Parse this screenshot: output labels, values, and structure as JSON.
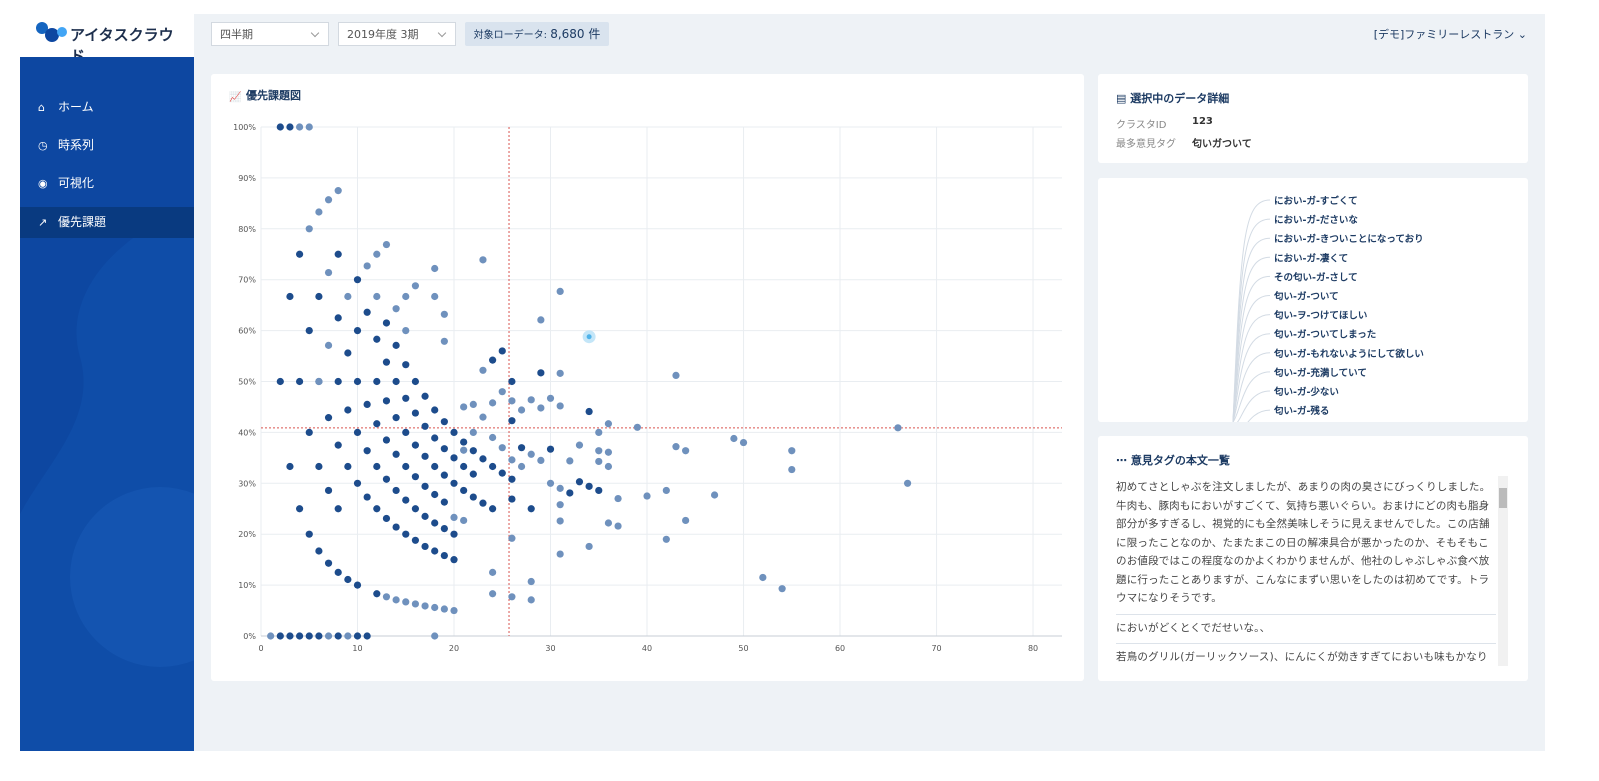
{
  "header": {
    "logo": "アイタスクラウド",
    "period": "四半期",
    "term": "2019年度 3期",
    "count_label": "対象ローデータ:",
    "count_value": "8,680 件",
    "account": "[デモ]ファミリーレストラン"
  },
  "sidebar": {
    "items": [
      "ホーム",
      "時系列",
      "可視化",
      "優先課題"
    ]
  },
  "chart_data": {
    "type": "scatter",
    "title": "優先課題図",
    "xlim": [
      0,
      83
    ],
    "xticks": [
      0,
      10,
      20,
      30,
      40,
      50,
      60,
      70,
      80
    ],
    "ylim": [
      0,
      100
    ],
    "yticks": [
      {
        "value": 0,
        "label": "0%"
      },
      {
        "value": 10,
        "label": "10%"
      },
      {
        "value": 20,
        "label": "20%"
      },
      {
        "value": 30,
        "label": "30%"
      },
      {
        "value": 40,
        "label": "40%"
      },
      {
        "value": 50,
        "label": "50%"
      },
      {
        "value": 60,
        "label": "60%"
      },
      {
        "value": 70,
        "label": "70%"
      },
      {
        "value": 80,
        "label": "80%"
      },
      {
        "value": 90,
        "label": "90%"
      },
      {
        "value": 100,
        "label": "100%"
      }
    ],
    "grid": true,
    "ref_x": 25.7,
    "ref_y": 40.9,
    "ref_color": "#d9534f",
    "series": [
      {
        "color": "#1d4c8c",
        "x": [
          2,
          3,
          2,
          4,
          3,
          6,
          5,
          3,
          4,
          5,
          6,
          7,
          8,
          9,
          10,
          12,
          4,
          8,
          6,
          8,
          10,
          5,
          8,
          10,
          10,
          12,
          11,
          9,
          9,
          10,
          11,
          12,
          13,
          14,
          15,
          16,
          17,
          18,
          19,
          20,
          8,
          7,
          10,
          9,
          11,
          12,
          13,
          14,
          15,
          16,
          17,
          18,
          19,
          20,
          11,
          12,
          13,
          14,
          15,
          16,
          17,
          18,
          19,
          20,
          21,
          22,
          23,
          24,
          12,
          13,
          14,
          15,
          16,
          17,
          18,
          19,
          13,
          14,
          15,
          16,
          17,
          18,
          19,
          20,
          21,
          22,
          14,
          16,
          17,
          18,
          19,
          20,
          21,
          22,
          23,
          24,
          25,
          26,
          13,
          15,
          24,
          25,
          26,
          26,
          26,
          28,
          29,
          27,
          30,
          32,
          33,
          34,
          35,
          34,
          8,
          7,
          6,
          2,
          3,
          4,
          5,
          6,
          8,
          10,
          11
        ],
        "values": [
          100,
          100,
          50,
          50,
          66.7,
          66.7,
          60,
          33.3,
          25,
          20,
          16.7,
          14.3,
          12.5,
          11.1,
          10,
          8.3,
          75,
          75,
          50,
          50,
          50,
          40,
          62.5,
          60,
          70,
          58.3,
          63.6,
          55.6,
          44.4,
          40,
          36.4,
          33.3,
          30.8,
          28.6,
          26.7,
          25,
          23.5,
          22.2,
          21.1,
          20,
          37.5,
          42.9,
          30,
          33.3,
          27.3,
          25,
          23.1,
          21.4,
          20,
          18.8,
          17.6,
          16.7,
          15.8,
          15,
          45.5,
          50,
          46.2,
          42.9,
          40,
          37.5,
          35.3,
          33.3,
          31.6,
          30,
          28.6,
          27.3,
          26.1,
          25,
          41.7,
          38.5,
          35.7,
          33.3,
          31.3,
          29.4,
          27.8,
          26.3,
          53.8,
          50,
          46.7,
          43.8,
          41.2,
          38.9,
          36.8,
          35,
          33.3,
          31.8,
          57.1,
          50,
          47.1,
          44.4,
          42.1,
          40,
          38.1,
          36.4,
          34.8,
          33.3,
          32,
          30.8,
          61.5,
          53.3,
          54.2,
          56,
          50,
          42.3,
          26.9,
          25,
          51.7,
          37,
          36.7,
          28.1,
          30.3,
          29.4,
          28.6,
          44.1,
          25,
          28.6,
          33.3,
          0,
          0,
          0,
          0,
          0,
          0,
          0,
          0
        ]
      },
      {
        "color": "#6f91bd",
        "x": [
          4,
          5,
          5,
          6,
          7,
          8,
          7,
          9,
          11,
          12,
          13,
          12,
          14,
          15,
          16,
          18,
          18,
          19,
          19,
          23,
          31,
          29,
          6,
          7,
          15,
          23,
          22,
          24,
          25,
          26,
          27,
          28,
          29,
          30,
          31,
          31,
          43,
          39,
          36,
          35,
          35,
          35,
          36,
          36,
          33,
          32,
          29,
          28,
          27,
          26,
          43,
          44,
          49,
          50,
          55,
          55,
          66,
          67,
          37,
          36,
          37,
          40,
          42,
          44,
          47,
          42,
          31,
          31,
          31,
          30,
          34,
          31,
          26,
          24,
          24,
          26,
          28,
          28,
          52,
          54,
          20,
          19,
          18,
          17,
          16,
          15,
          14,
          13,
          1,
          7,
          9,
          18,
          21,
          20,
          21,
          22,
          21,
          23,
          24,
          25
        ],
        "values": [
          100,
          100,
          80,
          83.3,
          85.7,
          87.5,
          71.4,
          66.7,
          72.7,
          75,
          76.9,
          66.7,
          64.3,
          66.7,
          68.8,
          72.2,
          66.7,
          63.2,
          57.9,
          73.9,
          67.7,
          62.1,
          50,
          57.1,
          60,
          52.2,
          45.5,
          45.8,
          48,
          46.2,
          44.4,
          46.4,
          44.8,
          46.7,
          45.2,
          51.6,
          51.2,
          41,
          41.7,
          40,
          36.4,
          34.3,
          36.1,
          33.3,
          37.5,
          34.4,
          34.5,
          35.7,
          33.3,
          34.6,
          37.2,
          36.4,
          38.8,
          38,
          36.4,
          32.7,
          40.9,
          30,
          27,
          22.2,
          21.6,
          27.5,
          28.6,
          22.7,
          27.7,
          19,
          22.6,
          25.8,
          29,
          30,
          17.6,
          16.1,
          19.2,
          12.5,
          8.3,
          7.7,
          7.1,
          10.7,
          11.5,
          9.3,
          5,
          5.3,
          5.6,
          5.9,
          6.3,
          6.7,
          7.1,
          7.7,
          0,
          0,
          0,
          0,
          22.7,
          23.3,
          36.5,
          40,
          45,
          43,
          39,
          37
        ]
      },
      {
        "color": "#4fb3ea",
        "halo": "#c4e6f8",
        "x": [
          34
        ],
        "values": [
          58.8
        ]
      }
    ]
  },
  "detail": {
    "title": "選択中のデータ詳細",
    "rows": [
      [
        "クラスタID",
        "123"
      ],
      [
        "最多意見タグ",
        "匂いガついて"
      ]
    ]
  },
  "tags": [
    "におい-ガ-すごくて",
    "におい-ガ-ださいな",
    "におい-ガ-きついことになっており",
    "におい-ガ-凄くて",
    "その匂い-ガ-さして",
    "匂い-ガ-ついて",
    "匂い-ヲ-つけてほしい",
    "匂い-ガ-ついてしまった",
    "匂い-ガ-もれないようにして欲しい",
    "匂い-ガ-充満していて",
    "匂い-ガ-少ない",
    "匂い-ガ-残る"
  ],
  "comments": {
    "title": "意見タグの本文一覧",
    "items": [
      "初めてさとしゃぶを注文しましたが、あまりの肉の臭さにびっくりしました。牛肉も、豚肉もにおいがすごくて、気持ち悪いぐらい。おまけにどの肉も脂身部分が多すぎるし、視覚的にも全然美味しそうに見えませんでした。この店舗に限ったことなのか、たまたまこの日の解凍具合が悪かったのか、そもそもこのお値段ではこの程度なのかよくわかりませんが、他社のしゃぶしゃぶ食べ放題に行ったことありますが、こんなにまずい思いをしたのは初めてです。トラウマになりそうです。",
      "においがどくとくでだせいな。、",
      "若鳥のグリル(ガーリックソース)、にんにくが効きすぎてにおいも味もかなりきついことになっており、おいしく頂けなかった。"
    ]
  }
}
